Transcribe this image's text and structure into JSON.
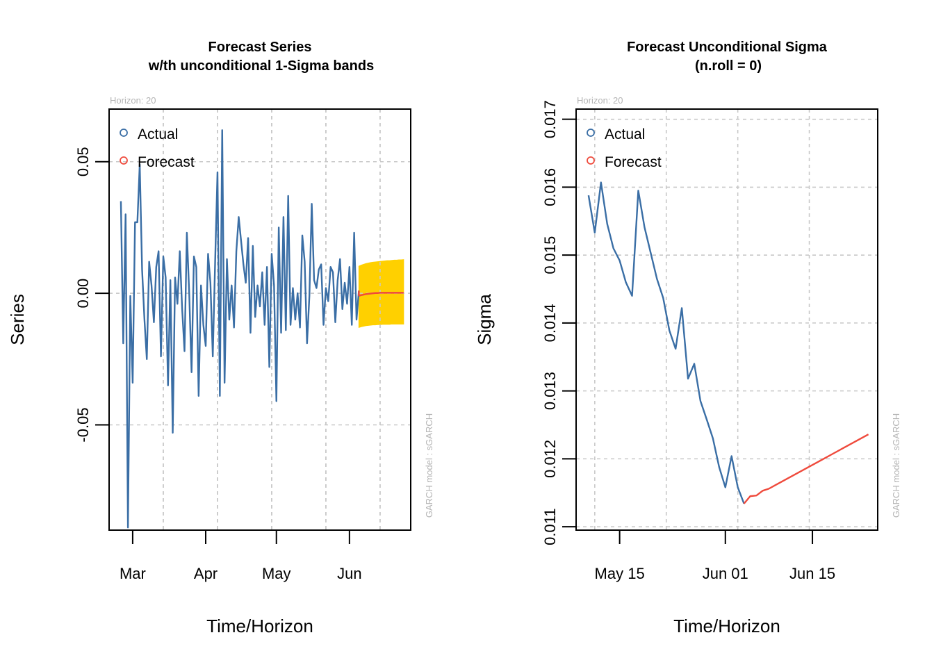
{
  "chart_data": [
    {
      "type": "line",
      "title": "Forecast Series",
      "subtitle": "w/th unconditional 1-Sigma bands",
      "xlabel": "Time/Horizon",
      "ylabel": "Series",
      "note_top": "Horizon: 20",
      "note_side": "GARCH model :  sGARCH",
      "ylim": [
        -0.09,
        0.07
      ],
      "yticks": [
        -0.05,
        0.0,
        0.05
      ],
      "ytick_labels": [
        "-0.05",
        "0.00",
        "0.05"
      ],
      "xticks": [
        {
          "label": "Mar",
          "index": 5
        },
        {
          "label": "Apr",
          "index": 36
        },
        {
          "label": "May",
          "index": 66
        },
        {
          "label": "Jun",
          "index": 97
        }
      ],
      "xgrid_index": [
        18,
        41,
        64,
        87,
        110
      ],
      "xlim_index": [
        -5,
        123
      ],
      "grid": true,
      "legend": {
        "placement": "top-left",
        "entries": [
          {
            "label": "Actual",
            "color": "#3a6ea5"
          },
          {
            "label": "Forecast",
            "color": "#ef4a3c"
          }
        ]
      },
      "band_color": "#ffd000",
      "series": [
        {
          "name": "Actual",
          "color": "#3a6ea5",
          "start_index": 0,
          "values": [
            0.035,
            -0.019,
            0.03,
            -0.089,
            -0.001,
            -0.034,
            0.027,
            0.027,
            0.049,
            0.009,
            -0.01,
            -0.025,
            0.012,
            0.003,
            -0.011,
            0.01,
            0.016,
            -0.024,
            0.014,
            0.006,
            -0.035,
            0.005,
            -0.053,
            0.006,
            -0.004,
            0.016,
            -0.006,
            -0.022,
            0.023,
            0.0,
            -0.03,
            0.014,
            0.01,
            -0.039,
            0.003,
            -0.012,
            -0.02,
            0.015,
            0.004,
            -0.024,
            0.012,
            0.046,
            -0.039,
            0.062,
            -0.034,
            0.013,
            -0.01,
            0.003,
            -0.013,
            0.016,
            0.029,
            0.02,
            0.011,
            0.004,
            0.021,
            -0.015,
            0.018,
            -0.009,
            0.003,
            -0.005,
            0.008,
            -0.012,
            0.01,
            -0.028,
            0.015,
            0.003,
            -0.041,
            0.025,
            -0.015,
            0.029,
            -0.014,
            0.037,
            -0.012,
            0.002,
            -0.01,
            0.0,
            -0.013,
            0.022,
            0.012,
            -0.019,
            -0.001,
            0.034,
            0.005,
            0.002,
            0.009,
            0.011,
            -0.012,
            0.002,
            -0.003,
            0.01,
            0.008,
            -0.011,
            0.005,
            0.013,
            -0.006,
            0.004,
            -0.004,
            0.01,
            -0.012,
            0.023,
            -0.01,
            0.001
          ]
        },
        {
          "name": "Forecast",
          "color": "#ef4a3c",
          "start_index": 101,
          "values": [
            -0.001,
            -0.0007,
            -0.0005,
            -0.0003,
            -0.0002,
            -0.0001,
            0.0,
            0.0001,
            0.0001,
            0.0002,
            0.0002,
            0.0002,
            0.0002,
            0.0002,
            0.0002,
            0.0002,
            0.0002,
            0.0002,
            0.0002,
            0.0002
          ]
        },
        {
          "name": "Upper band",
          "start_index": 101,
          "values": [
            0.0103,
            0.0107,
            0.011,
            0.0113,
            0.0115,
            0.0117,
            0.0118,
            0.0119,
            0.012,
            0.0121,
            0.0122,
            0.0123,
            0.0124,
            0.0124,
            0.0125,
            0.0126,
            0.0126,
            0.0127,
            0.0127,
            0.0128
          ]
        },
        {
          "name": "Lower band",
          "start_index": 101,
          "values": [
            -0.013,
            -0.0127,
            -0.0125,
            -0.0123,
            -0.0122,
            -0.0121,
            -0.012,
            -0.012,
            -0.0119,
            -0.0119,
            -0.0118,
            -0.0118,
            -0.0118,
            -0.0118,
            -0.0117,
            -0.0117,
            -0.0117,
            -0.0117,
            -0.0117,
            -0.0117
          ]
        }
      ]
    },
    {
      "type": "line",
      "title": "Forecast Unconditional Sigma",
      "subtitle": "(n.roll = 0)",
      "xlabel": "Time/Horizon",
      "ylabel": "Sigma",
      "note_top": "Horizon: 20",
      "note_side": "GARCH model :  sGARCH",
      "ylim": [
        0.01095,
        0.01715
      ],
      "yticks": [
        0.011,
        0.012,
        0.013,
        0.014,
        0.015,
        0.016,
        0.017
      ],
      "ytick_labels": [
        "0.011",
        "0.012",
        "0.013",
        "0.014",
        "0.015",
        "0.016",
        "0.017"
      ],
      "xticks": [
        {
          "label": "May 15",
          "index": 5
        },
        {
          "label": "Jun 01",
          "index": 22
        },
        {
          "label": "Jun 15",
          "index": 36
        }
      ],
      "xgrid_index": [
        1,
        12.5,
        24,
        35.5
      ],
      "xlim_index": [
        -2,
        46.5
      ],
      "grid": true,
      "legend": {
        "placement": "top-left",
        "entries": [
          {
            "label": "Actual",
            "color": "#3a6ea5"
          },
          {
            "label": "Forecast",
            "color": "#ef4a3c"
          }
        ]
      },
      "series": [
        {
          "name": "Actual",
          "color": "#3a6ea5",
          "start_index": 0,
          "values": [
            0.01588,
            0.01533,
            0.01607,
            0.01546,
            0.0151,
            0.01492,
            0.0146,
            0.0144,
            0.01595,
            0.01541,
            0.01503,
            0.01465,
            0.01437,
            0.01389,
            0.01362,
            0.01422,
            0.01318,
            0.0134,
            0.01285,
            0.01258,
            0.0123,
            0.01188,
            0.01158,
            0.01204,
            0.01158,
            0.01134
          ]
        },
        {
          "name": "Forecast",
          "color": "#ef4a3c",
          "start_index": 25,
          "values": [
            0.01134,
            0.01145,
            0.01146,
            0.01153,
            0.01156,
            0.01161,
            0.01166,
            0.01171,
            0.01176,
            0.01181,
            0.01186,
            0.01191,
            0.01196,
            0.01201,
            0.01206,
            0.01211,
            0.01216,
            0.01221,
            0.01226,
            0.01231,
            0.01236
          ]
        }
      ]
    }
  ]
}
